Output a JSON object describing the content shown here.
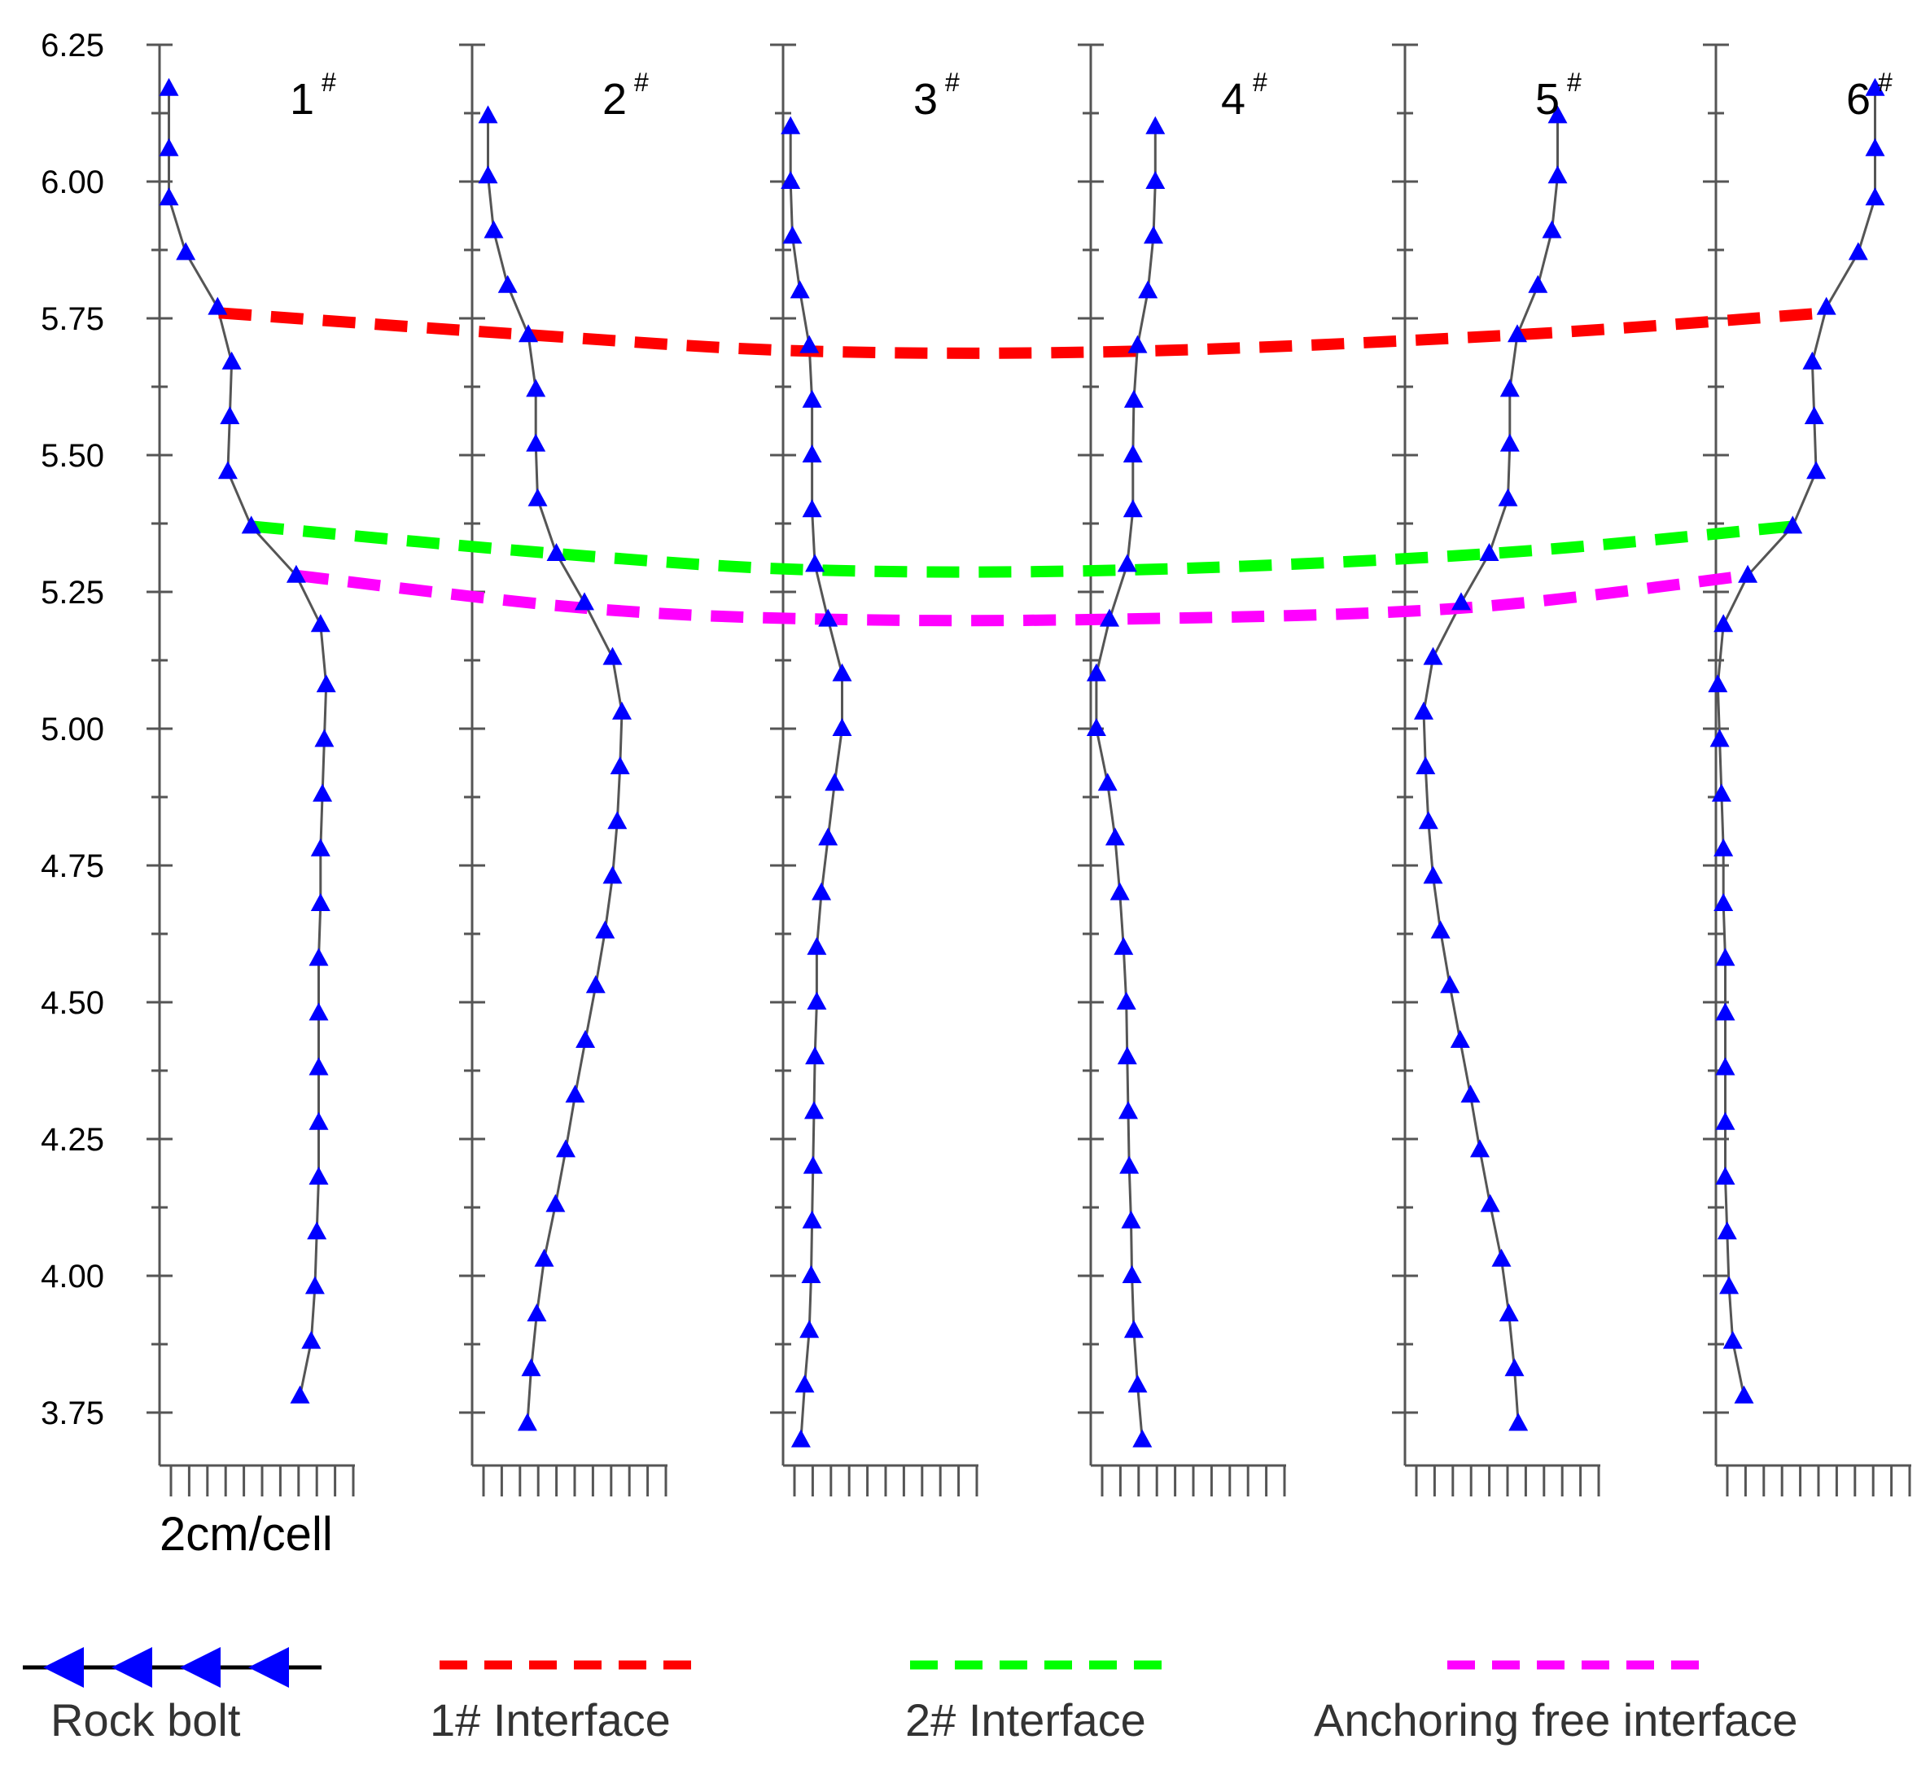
{
  "chart_data": {
    "type": "line",
    "ylim": [
      3.72,
      6.25
    ],
    "yticks": [
      "6.25",
      "6.00",
      "5.75",
      "5.50",
      "5.25",
      "5.00",
      "4.75",
      "4.50",
      "4.25",
      "4.00",
      "3.75"
    ],
    "scale_label": "2cm/cell",
    "grid": false,
    "colors": {
      "bolt": "#0000ff",
      "bolt_line": "#555555",
      "interface1": "#ff0000",
      "interface2": "#00ff00",
      "anchor_free": "#ff00ff",
      "axis": "#555555"
    },
    "panels": [
      {
        "label": "1",
        "sup": "#",
        "y": [
          6.17,
          6.06,
          5.97,
          5.87,
          5.77,
          5.67,
          5.57,
          5.47,
          5.37,
          5.28,
          5.19,
          5.08,
          4.98,
          4.88,
          4.78,
          4.68,
          4.58,
          4.48,
          4.38,
          4.28,
          4.18,
          4.08,
          3.98,
          3.88,
          3.78
        ],
        "x": [
          1.0,
          1.0,
          1.0,
          2.8,
          6.2,
          7.7,
          7.5,
          7.3,
          9.8,
          14.6,
          17.2,
          17.8,
          17.6,
          17.4,
          17.2,
          17.2,
          17.0,
          17.0,
          17.0,
          17.0,
          17.0,
          16.8,
          16.6,
          16.2,
          15.0
        ]
      },
      {
        "label": "2",
        "sup": "#",
        "y": [
          6.12,
          6.01,
          5.91,
          5.81,
          5.72,
          5.62,
          5.52,
          5.42,
          5.32,
          5.23,
          5.13,
          5.03,
          4.93,
          4.83,
          4.73,
          4.63,
          4.53,
          4.43,
          4.33,
          4.23,
          4.13,
          4.03,
          3.93,
          3.83,
          3.73
        ],
        "x": [
          1.7,
          1.7,
          2.3,
          3.8,
          6.0,
          6.8,
          6.8,
          7.0,
          9.0,
          12.0,
          15.0,
          16.0,
          15.8,
          15.5,
          15.0,
          14.2,
          13.2,
          12.1,
          11.0,
          10.0,
          8.9,
          7.7,
          6.9,
          6.3,
          5.9
        ]
      },
      {
        "label": "3",
        "sup": "#",
        "y": [
          6.1,
          6.0,
          5.9,
          5.8,
          5.7,
          5.6,
          5.5,
          5.4,
          5.3,
          5.2,
          5.1,
          5.0,
          4.9,
          4.8,
          4.7,
          4.6,
          4.5,
          4.4,
          4.3,
          4.2,
          4.1,
          4.0,
          3.9,
          3.8,
          3.7
        ],
        "x": [
          0.8,
          0.8,
          1.0,
          1.8,
          2.8,
          3.1,
          3.1,
          3.1,
          3.4,
          4.8,
          6.3,
          6.3,
          5.5,
          4.8,
          4.1,
          3.6,
          3.6,
          3.4,
          3.3,
          3.2,
          3.1,
          3.0,
          2.8,
          2.3,
          1.9
        ]
      },
      {
        "label": "4",
        "sup": "#",
        "y": [
          6.1,
          6.0,
          5.9,
          5.8,
          5.7,
          5.6,
          5.5,
          5.4,
          5.3,
          5.2,
          5.1,
          5.0,
          4.9,
          4.8,
          4.7,
          4.6,
          4.5,
          4.4,
          4.3,
          4.2,
          4.1,
          4.0,
          3.9,
          3.8,
          3.7
        ],
        "x": [
          6.9,
          6.9,
          6.7,
          6.1,
          5.0,
          4.6,
          4.5,
          4.5,
          3.9,
          2.0,
          0.6,
          0.6,
          1.8,
          2.6,
          3.1,
          3.5,
          3.8,
          3.9,
          4.0,
          4.1,
          4.3,
          4.4,
          4.6,
          5.0,
          5.5
        ]
      },
      {
        "label": "5",
        "sup": "#",
        "y": [
          6.12,
          6.01,
          5.91,
          5.81,
          5.72,
          5.62,
          5.52,
          5.42,
          5.32,
          5.23,
          5.13,
          5.03,
          4.93,
          4.83,
          4.73,
          4.63,
          4.53,
          4.43,
          4.33,
          4.23,
          4.13,
          4.03,
          3.93,
          3.83,
          3.73
        ],
        "x": [
          16.3,
          16.3,
          15.7,
          14.2,
          12.0,
          11.2,
          11.2,
          11.0,
          9.0,
          6.0,
          3.0,
          2.0,
          2.2,
          2.5,
          3.0,
          3.8,
          4.8,
          5.9,
          7.0,
          8.0,
          9.1,
          10.3,
          11.1,
          11.7,
          12.1
        ]
      },
      {
        "label": "6",
        "sup": "#",
        "y": [
          6.17,
          6.06,
          5.97,
          5.87,
          5.77,
          5.67,
          5.57,
          5.47,
          5.37,
          5.28,
          5.19,
          5.08,
          4.98,
          4.88,
          4.78,
          4.68,
          4.58,
          4.48,
          4.38,
          4.28,
          4.18,
          4.08,
          3.98,
          3.88,
          3.78
        ],
        "x": [
          17.0,
          17.0,
          17.0,
          15.2,
          11.8,
          10.3,
          10.5,
          10.7,
          8.2,
          3.4,
          0.8,
          0.2,
          0.4,
          0.6,
          0.8,
          0.8,
          1.0,
          1.0,
          1.0,
          1.0,
          1.0,
          1.2,
          1.4,
          1.8,
          3.0
        ]
      }
    ],
    "interfaces": [
      {
        "name": "1# Interface",
        "color": "#ff0000",
        "y": [
          5.76,
          5.72,
          5.69,
          5.69,
          5.72,
          5.76
        ]
      },
      {
        "name": "2# Interface",
        "color": "#00ff00",
        "y": [
          5.37,
          5.32,
          5.29,
          5.29,
          5.32,
          5.37
        ]
      },
      {
        "name": "Anchoring free interface",
        "color": "#ff00ff",
        "y": [
          5.28,
          5.22,
          5.2,
          5.2,
          5.22,
          5.28
        ]
      }
    ],
    "legend": {
      "position": "bottom",
      "items": [
        "Rock bolt",
        "1# Interface",
        "2# Interface",
        "Anchoring free interface"
      ]
    }
  }
}
